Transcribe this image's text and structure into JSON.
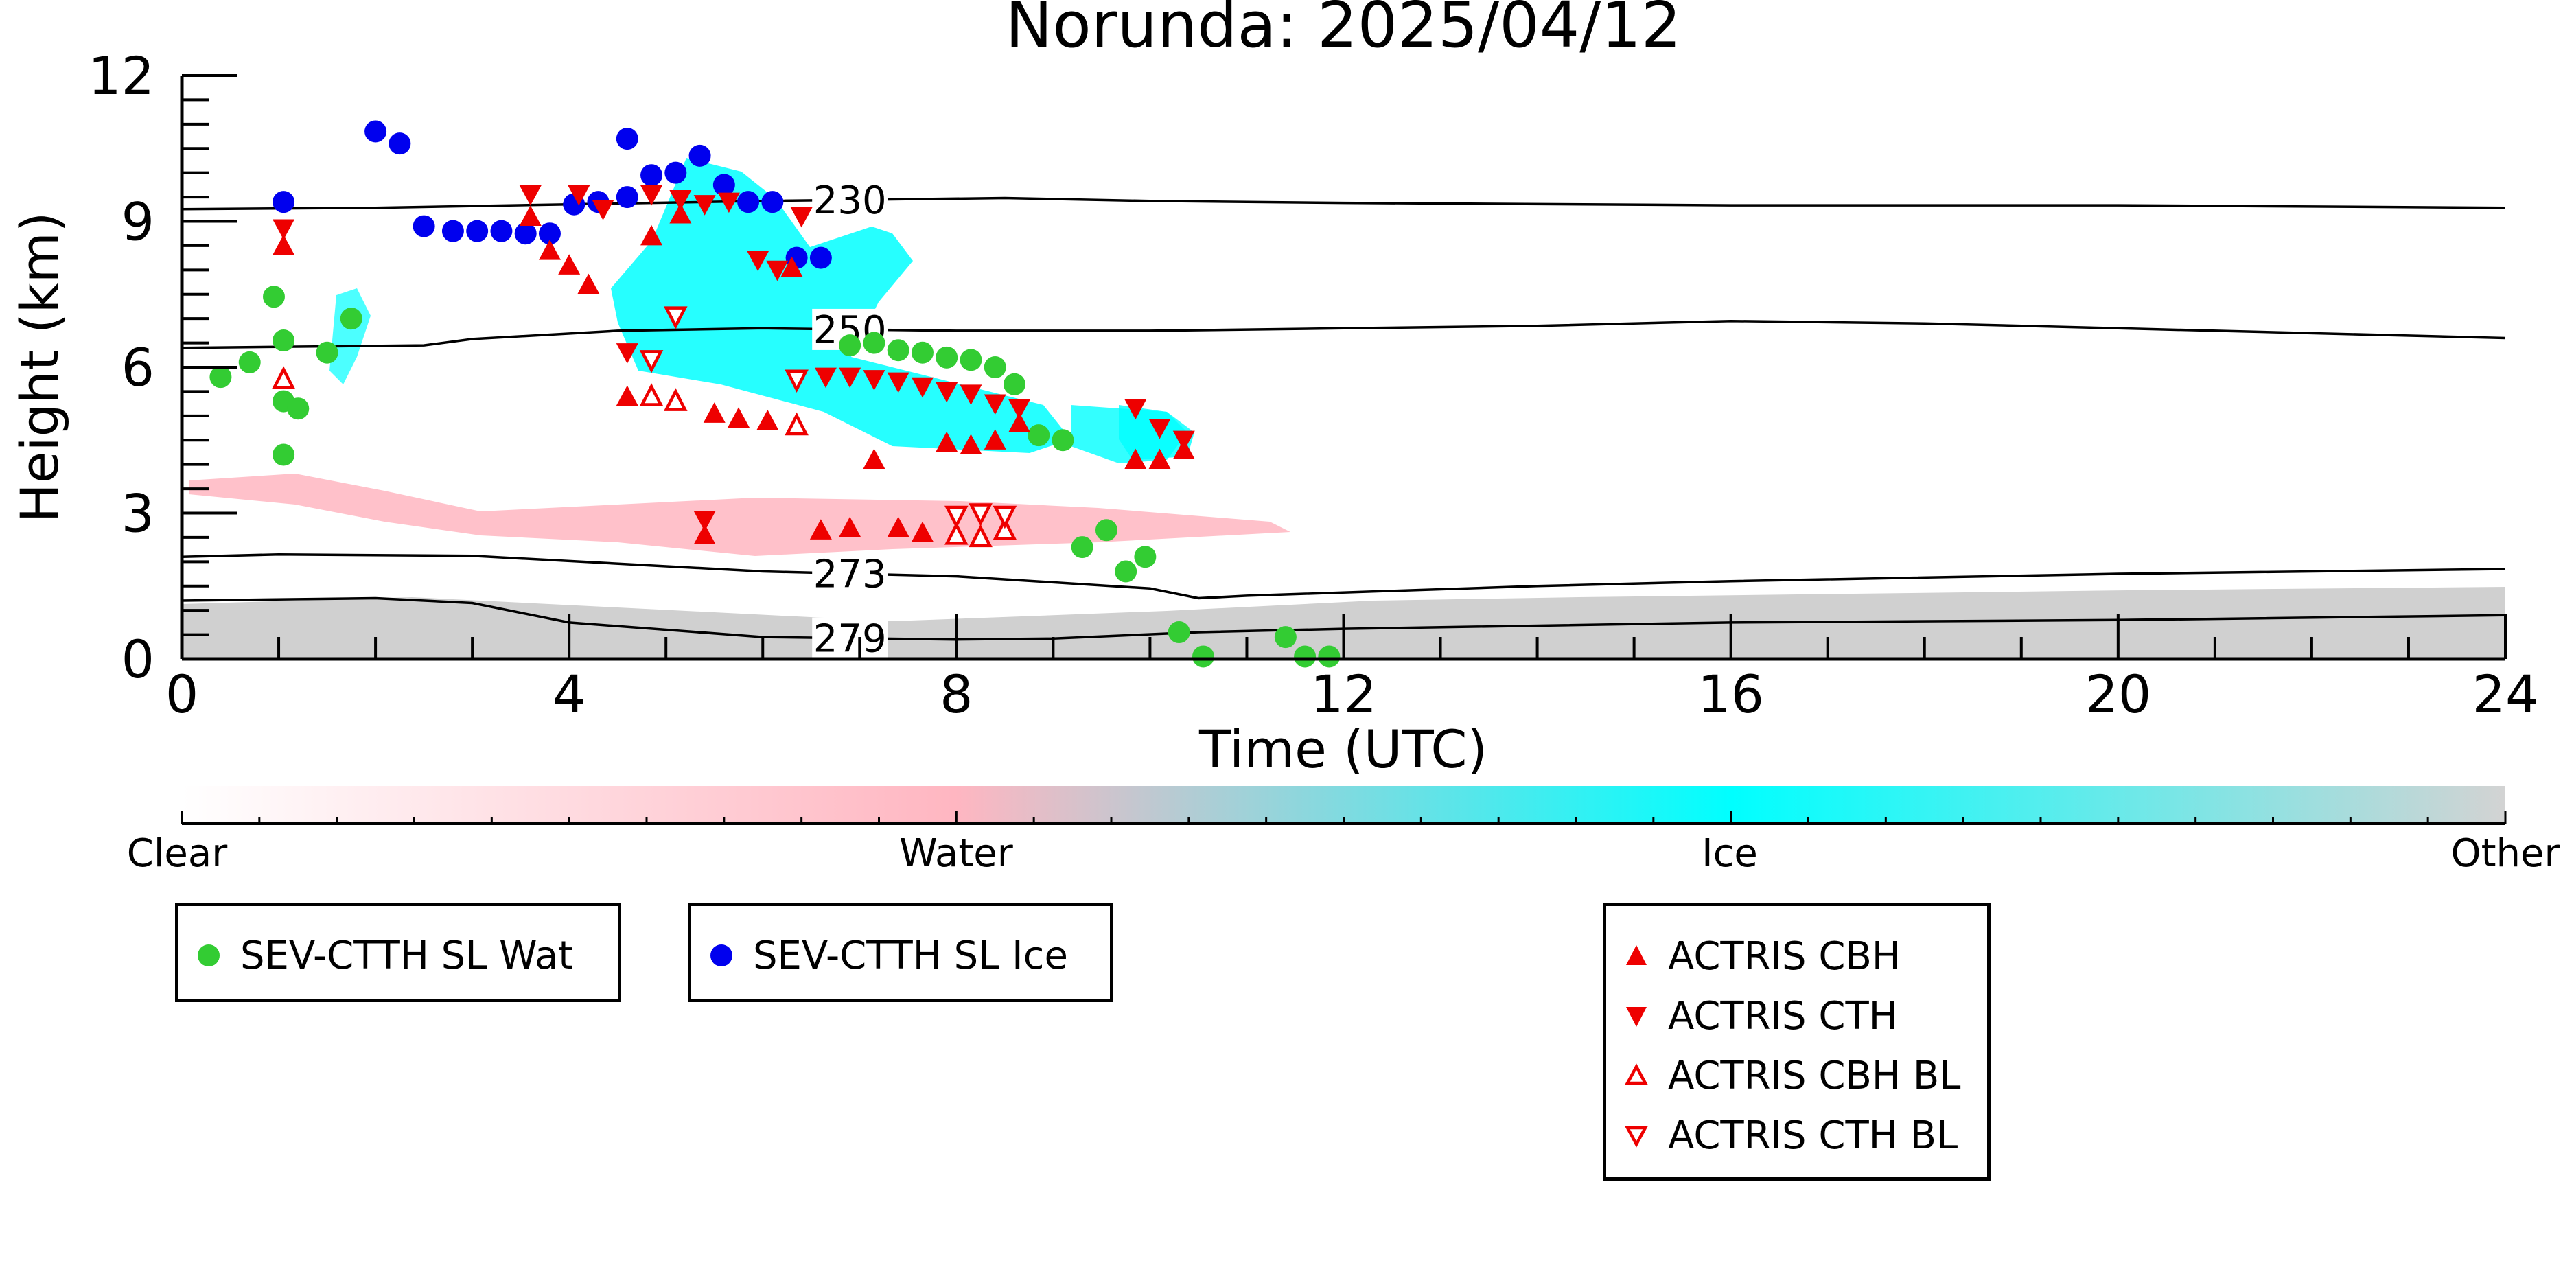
{
  "chart_data": {
    "type": "scatter",
    "title": "Norunda: 2025/04/12",
    "xlabel": "Time (UTC)",
    "ylabel": "Height (km)",
    "xlim": [
      0,
      24
    ],
    "ylim": [
      0,
      12
    ],
    "x_ticks": [
      0,
      4,
      8,
      12,
      16,
      20,
      24
    ],
    "y_ticks": [
      0,
      3,
      6,
      9,
      12
    ],
    "grid": false,
    "colorbar": {
      "labels": [
        "Clear",
        "Water",
        "Ice",
        "Other"
      ],
      "colors": [
        "#ffffff",
        "#ffb6c1",
        "#00ffff",
        "#d3d3d3"
      ]
    },
    "temperature_contours": [
      {
        "label": "230",
        "points": [
          [
            0,
            9.25
          ],
          [
            2,
            9.28
          ],
          [
            4,
            9.35
          ],
          [
            6,
            9.42
          ],
          [
            8.5,
            9.48
          ],
          [
            10,
            9.42
          ],
          [
            12,
            9.38
          ],
          [
            16,
            9.33
          ],
          [
            20,
            9.33
          ],
          [
            24,
            9.28
          ]
        ]
      },
      {
        "label": "250",
        "points": [
          [
            0,
            6.4
          ],
          [
            2.5,
            6.45
          ],
          [
            3,
            6.58
          ],
          [
            4.5,
            6.75
          ],
          [
            6,
            6.8
          ],
          [
            8,
            6.75
          ],
          [
            10,
            6.75
          ],
          [
            12,
            6.8
          ],
          [
            14,
            6.85
          ],
          [
            16,
            6.95
          ],
          [
            18,
            6.9
          ],
          [
            20,
            6.8
          ],
          [
            24,
            6.6
          ]
        ]
      },
      {
        "label": "273",
        "points": [
          [
            0,
            2.1
          ],
          [
            1,
            2.15
          ],
          [
            3,
            2.12
          ],
          [
            6,
            1.8
          ],
          [
            8,
            1.7
          ],
          [
            10,
            1.45
          ],
          [
            10.5,
            1.25
          ],
          [
            11,
            1.3
          ],
          [
            14,
            1.5
          ],
          [
            16,
            1.6
          ],
          [
            20,
            1.75
          ],
          [
            24,
            1.85
          ]
        ]
      },
      {
        "label": "279",
        "points": [
          [
            0,
            1.2
          ],
          [
            2,
            1.25
          ],
          [
            3,
            1.15
          ],
          [
            4,
            0.75
          ],
          [
            6,
            0.45
          ],
          [
            8,
            0.4
          ],
          [
            9,
            0.42
          ],
          [
            10.5,
            0.55
          ],
          [
            12,
            0.62
          ],
          [
            16,
            0.75
          ],
          [
            20,
            0.8
          ],
          [
            24,
            0.9
          ]
        ]
      }
    ],
    "series": [
      {
        "name": "SEV-CTTH SL Wat",
        "color": "#33cc33",
        "marker": "circle",
        "points": [
          [
            0.4,
            5.8
          ],
          [
            0.7,
            6.1
          ],
          [
            0.95,
            7.45
          ],
          [
            1.05,
            6.55
          ],
          [
            1.05,
            5.3
          ],
          [
            1.2,
            5.15
          ],
          [
            1.05,
            4.2
          ],
          [
            1.5,
            6.3
          ],
          [
            1.75,
            7.0
          ],
          [
            6.9,
            6.45
          ],
          [
            7.15,
            6.5
          ],
          [
            7.4,
            6.35
          ],
          [
            7.65,
            6.3
          ],
          [
            7.9,
            6.2
          ],
          [
            8.15,
            6.15
          ],
          [
            8.4,
            6.0
          ],
          [
            8.6,
            5.65
          ],
          [
            8.85,
            4.6
          ],
          [
            9.1,
            4.5
          ],
          [
            9.3,
            2.3
          ],
          [
            9.55,
            2.65
          ],
          [
            9.75,
            1.8
          ],
          [
            9.95,
            2.1
          ],
          [
            10.3,
            0.55
          ],
          [
            10.55,
            0.05
          ],
          [
            11.4,
            0.45
          ],
          [
            11.6,
            0.05
          ],
          [
            11.85,
            0.05
          ]
        ]
      },
      {
        "name": "SEV-CTTH SL Ice",
        "color": "#0000ee",
        "marker": "circle",
        "points": [
          [
            1.05,
            9.4
          ],
          [
            2.0,
            10.85
          ],
          [
            2.25,
            10.6
          ],
          [
            2.5,
            8.9
          ],
          [
            2.8,
            8.8
          ],
          [
            3.05,
            8.8
          ],
          [
            3.3,
            8.8
          ],
          [
            3.55,
            8.75
          ],
          [
            3.8,
            8.75
          ],
          [
            4.05,
            9.35
          ],
          [
            4.3,
            9.4
          ],
          [
            4.6,
            9.5
          ],
          [
            4.6,
            10.7
          ],
          [
            4.85,
            9.95
          ],
          [
            5.1,
            10.0
          ],
          [
            5.35,
            10.35
          ],
          [
            5.6,
            9.75
          ],
          [
            5.85,
            9.4
          ],
          [
            6.1,
            9.4
          ],
          [
            6.35,
            8.25
          ],
          [
            6.6,
            8.25
          ]
        ]
      },
      {
        "name": "ACTRIS CBH",
        "color": "#ee0000",
        "marker": "triangle-up",
        "points": [
          [
            1.05,
            8.5
          ],
          [
            3.6,
            9.1
          ],
          [
            3.8,
            8.4
          ],
          [
            4.0,
            8.1
          ],
          [
            4.2,
            7.7
          ],
          [
            4.6,
            5.4
          ],
          [
            4.85,
            8.7
          ],
          [
            5.15,
            9.15
          ],
          [
            5.4,
            2.55
          ],
          [
            5.5,
            5.05
          ],
          [
            5.75,
            4.95
          ],
          [
            6.05,
            4.9
          ],
          [
            6.3,
            8.05
          ],
          [
            6.6,
            2.65
          ],
          [
            6.9,
            2.7
          ],
          [
            7.15,
            4.1
          ],
          [
            7.4,
            2.7
          ],
          [
            7.65,
            2.6
          ],
          [
            7.9,
            4.45
          ],
          [
            8.15,
            4.4
          ],
          [
            8.4,
            4.5
          ],
          [
            8.65,
            4.85
          ],
          [
            9.85,
            4.1
          ],
          [
            10.1,
            4.1
          ],
          [
            10.35,
            4.3
          ]
        ]
      },
      {
        "name": "ACTRIS CTH",
        "color": "#ee0000",
        "marker": "triangle-down",
        "points": [
          [
            1.05,
            8.85
          ],
          [
            3.6,
            9.55
          ],
          [
            4.1,
            9.55
          ],
          [
            4.35,
            9.25
          ],
          [
            4.6,
            6.3
          ],
          [
            4.85,
            9.55
          ],
          [
            5.15,
            9.45
          ],
          [
            5.4,
            2.85
          ],
          [
            5.4,
            9.35
          ],
          [
            5.65,
            9.4
          ],
          [
            5.95,
            8.2
          ],
          [
            6.15,
            8.0
          ],
          [
            6.4,
            9.1
          ],
          [
            6.65,
            5.8
          ],
          [
            6.9,
            5.8
          ],
          [
            7.15,
            5.75
          ],
          [
            7.4,
            5.7
          ],
          [
            7.65,
            5.6
          ],
          [
            7.9,
            5.5
          ],
          [
            8.15,
            5.45
          ],
          [
            8.4,
            5.25
          ],
          [
            8.65,
            5.15
          ],
          [
            9.85,
            5.15
          ],
          [
            10.1,
            4.75
          ],
          [
            10.35,
            4.5
          ]
        ]
      },
      {
        "name": "ACTRIS CBH BL",
        "color": "#ee0000",
        "marker": "triangle-up-open",
        "points": [
          [
            1.05,
            5.75
          ],
          [
            4.85,
            5.4
          ],
          [
            5.1,
            5.3
          ],
          [
            6.35,
            4.8
          ],
          [
            8.0,
            2.55
          ],
          [
            8.25,
            2.5
          ],
          [
            8.5,
            2.65
          ]
        ]
      },
      {
        "name": "ACTRIS CTH BL",
        "color": "#ee0000",
        "marker": "triangle-down-open",
        "points": [
          [
            4.85,
            6.15
          ],
          [
            5.1,
            7.05
          ],
          [
            6.35,
            5.75
          ],
          [
            8.0,
            2.95
          ],
          [
            8.25,
            3.0
          ],
          [
            8.5,
            2.95
          ]
        ]
      }
    ]
  },
  "legends": {
    "sev": [
      {
        "label": "SEV-CTTH SL Wat",
        "marker": "circle",
        "color": "#33cc33"
      },
      {
        "label": "SEV-CTTH SL Ice",
        "marker": "circle",
        "color": "#0000ee"
      }
    ],
    "actris": [
      {
        "label": "ACTRIS CBH",
        "marker": "triangle-up",
        "color": "#ee0000"
      },
      {
        "label": "ACTRIS CTH",
        "marker": "triangle-down",
        "color": "#ee0000"
      },
      {
        "label": "ACTRIS CBH BL",
        "marker": "triangle-up-open",
        "color": "#ee0000"
      },
      {
        "label": "ACTRIS CTH BL",
        "marker": "triangle-down-open",
        "color": "#ee0000"
      }
    ]
  }
}
